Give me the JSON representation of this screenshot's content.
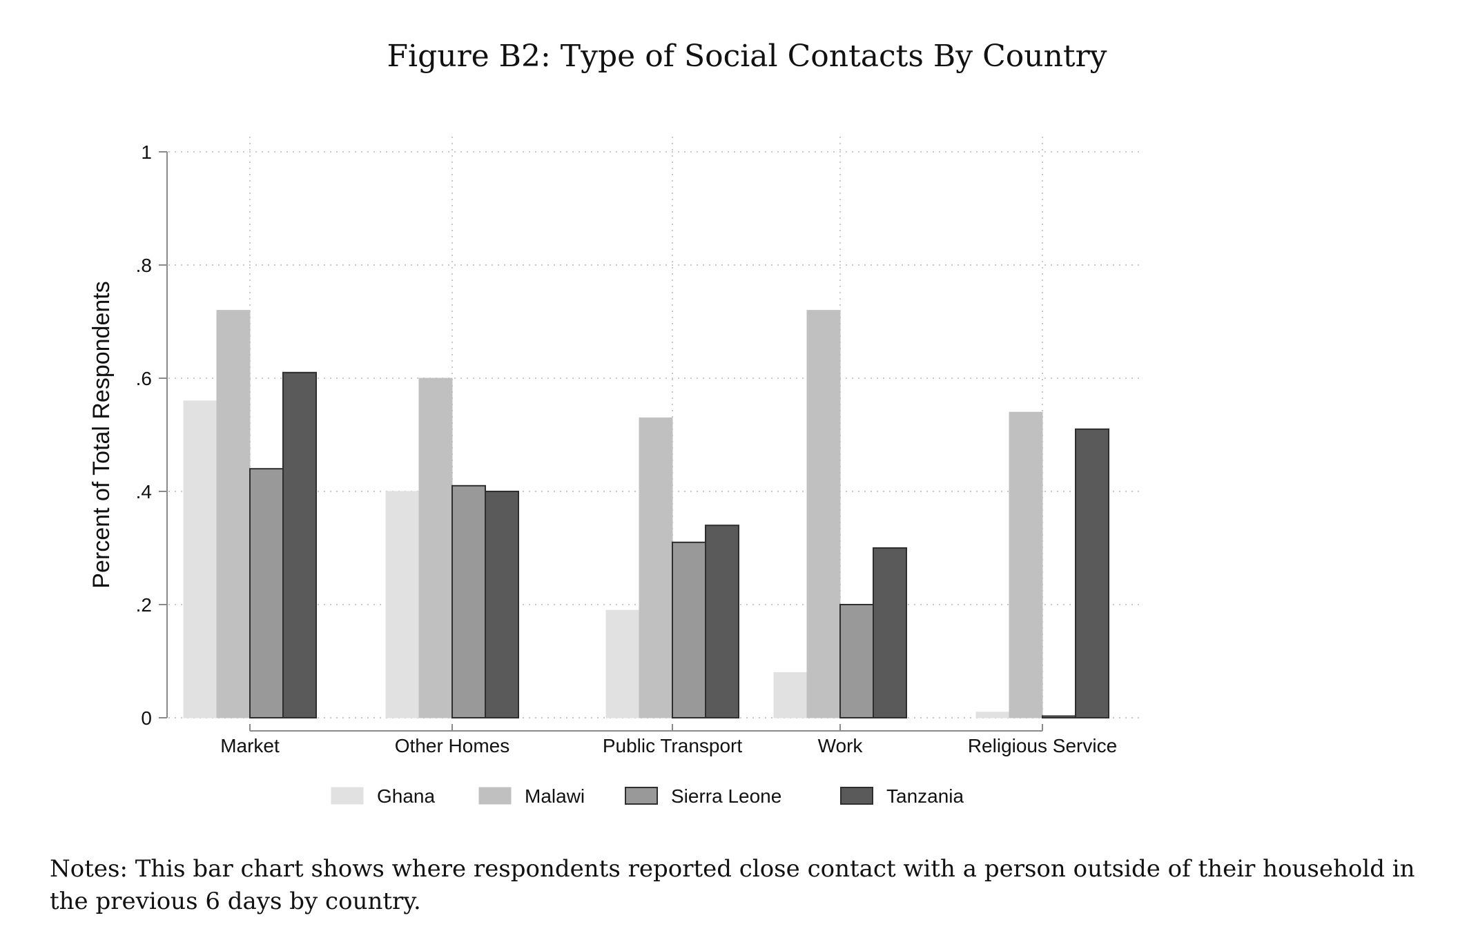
{
  "figure": {
    "title": "Figure B2: Type of Social Contacts By Country",
    "notes": "Notes: This bar chart shows where respondents reported close contact with a person outside of their household in the previous 6 days by country."
  },
  "chart_data": {
    "type": "bar",
    "title": "",
    "xlabel": "",
    "ylabel": "Percent of Total Respondents",
    "ylim": [
      0,
      1
    ],
    "yticks": [
      0,
      0.2,
      0.4,
      0.6,
      0.8,
      1
    ],
    "ytick_labels": [
      "0",
      ".2",
      ".4",
      ".6",
      ".8",
      "1"
    ],
    "grid": true,
    "legend_position": "bottom",
    "categories": [
      "Market",
      "Other Homes",
      "Public Transport",
      "Work",
      "Religious Service"
    ],
    "series": [
      {
        "name": "Ghana",
        "color": "#e1e1e1",
        "values": [
          0.56,
          0.4,
          0.19,
          0.08,
          0.01
        ]
      },
      {
        "name": "Malawi",
        "color": "#c0c0c0",
        "values": [
          0.72,
          0.6,
          0.53,
          0.72,
          0.54
        ]
      },
      {
        "name": "Sierra Leone",
        "color": "#999999",
        "values": [
          0.44,
          0.41,
          0.31,
          0.2,
          0.003
        ]
      },
      {
        "name": "Tanzania",
        "color": "#5a5a5a",
        "values": [
          0.61,
          0.4,
          0.34,
          0.3,
          0.51
        ]
      }
    ]
  }
}
